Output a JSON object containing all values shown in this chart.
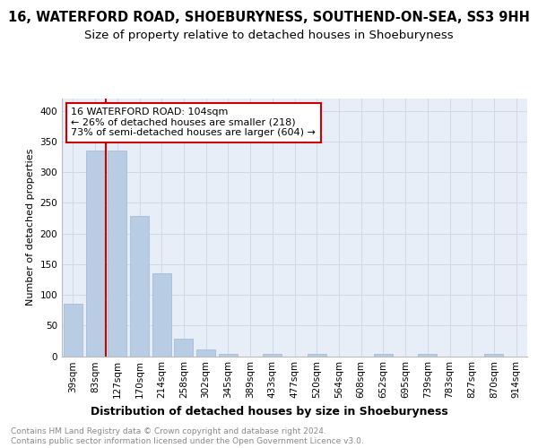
{
  "title1": "16, WATERFORD ROAD, SHOEBURYNESS, SOUTHEND-ON-SEA, SS3 9HH",
  "title2": "Size of property relative to detached houses in Shoeburyness",
  "xlabel": "Distribution of detached houses by size in Shoeburyness",
  "ylabel": "Number of detached properties",
  "categories": [
    "39sqm",
    "83sqm",
    "127sqm",
    "170sqm",
    "214sqm",
    "258sqm",
    "302sqm",
    "345sqm",
    "389sqm",
    "433sqm",
    "477sqm",
    "520sqm",
    "564sqm",
    "608sqm",
    "652sqm",
    "695sqm",
    "739sqm",
    "783sqm",
    "827sqm",
    "870sqm",
    "914sqm"
  ],
  "values": [
    85,
    335,
    335,
    228,
    135,
    28,
    11,
    4,
    0,
    4,
    0,
    4,
    0,
    0,
    3,
    0,
    3,
    0,
    0,
    3,
    0
  ],
  "bar_color": "#b8cce4",
  "bar_edge_color": "#9db8d4",
  "vline_x": 1.5,
  "vline_color": "#cc0000",
  "annotation_text": "16 WATERFORD ROAD: 104sqm\n← 26% of detached houses are smaller (218)\n73% of semi-detached houses are larger (604) →",
  "annotation_box_color": "#ffffff",
  "annotation_box_edge": "#cc0000",
  "ylim": [
    0,
    420
  ],
  "yticks": [
    0,
    50,
    100,
    150,
    200,
    250,
    300,
    350,
    400
  ],
  "grid_color": "#d0d8e8",
  "bg_color": "#e8eef8",
  "footer_text": "Contains HM Land Registry data © Crown copyright and database right 2024.\nContains public sector information licensed under the Open Government Licence v3.0.",
  "title1_fontsize": 10.5,
  "title2_fontsize": 9.5,
  "xlabel_fontsize": 9,
  "ylabel_fontsize": 8,
  "tick_fontsize": 7.5,
  "annotation_fontsize": 8,
  "footer_fontsize": 6.5
}
